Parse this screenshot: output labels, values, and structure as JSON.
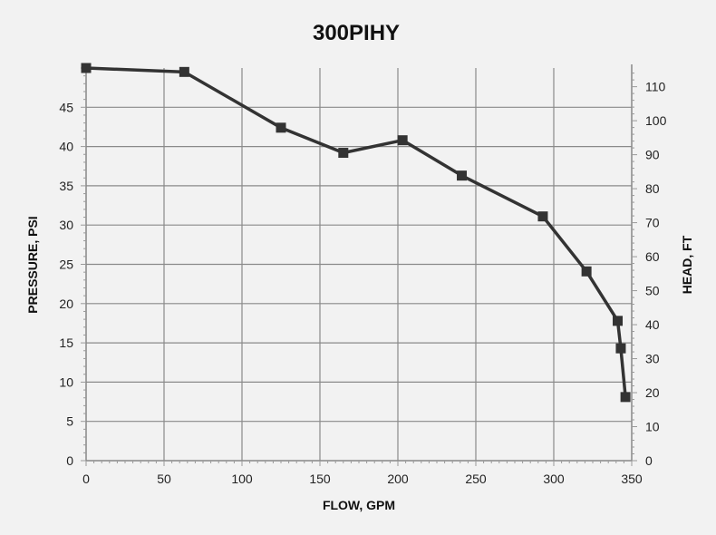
{
  "chart_data": {
    "type": "line",
    "title": "300PIHY",
    "xlabel": "FLOW, GPM",
    "ylabel": "PRESSURE, PSI",
    "y2label": "HEAD, FT",
    "xlim": [
      0,
      350
    ],
    "ylim": [
      0,
      50
    ],
    "y2lim": [
      0,
      115.5
    ],
    "x_ticks": [
      0,
      50,
      100,
      150,
      200,
      250,
      300,
      350
    ],
    "y_ticks": [
      0,
      5,
      10,
      15,
      20,
      25,
      30,
      35,
      40,
      45
    ],
    "y2_ticks": [
      0,
      10,
      20,
      30,
      40,
      50,
      60,
      70,
      80,
      90,
      100,
      110
    ],
    "grid": true,
    "series": [
      {
        "x": [
          0,
          63,
          125,
          165,
          203,
          241,
          293,
          321,
          341,
          343,
          346
        ],
        "y": [
          50.0,
          49.5,
          42.4,
          39.2,
          40.8,
          36.3,
          31.1,
          24.1,
          17.8,
          14.3,
          8.1
        ],
        "color": "#333333",
        "marker": "square"
      }
    ]
  }
}
